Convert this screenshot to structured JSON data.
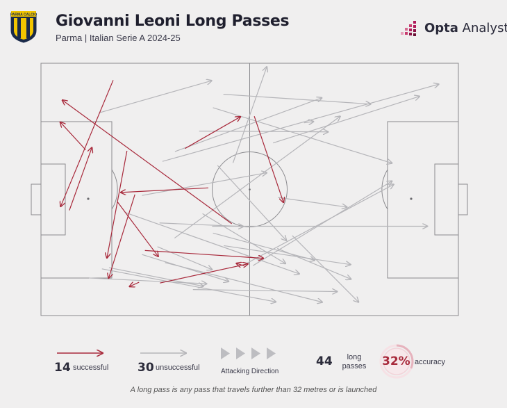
{
  "header": {
    "title": "Giovanni Leoni Long Passes",
    "subtitle": "Parma | Italian Serie A 2024-25",
    "crest_text": "PARMA CALCIO",
    "brand_prefix": "Opta",
    "brand_suffix": " Analyst"
  },
  "colors": {
    "successful": "#a8293b",
    "unsuccessful": "#b5b5b9",
    "pitch_line": "#8a8a8e",
    "brand_accent": "#b01b5a"
  },
  "legend": {
    "successful_count": "14",
    "successful_label": "successful",
    "unsuccessful_count": "30",
    "unsuccessful_label": "unsuccessful",
    "direction_label": "Attacking Direction",
    "total_count": "44",
    "total_label_line1": "long",
    "total_label_line2": "passes",
    "accuracy_value": "32%",
    "accuracy_label": "accuracy",
    "accuracy_fraction": 0.32
  },
  "footnote": "A long pass is any pass that travels further than 32 metres or is launched",
  "passes": {
    "successful": [
      [
        34.5,
        33.8,
        47.8,
        21.2
      ],
      [
        6.8,
        58.3,
        12.2,
        33.4
      ],
      [
        10.7,
        34.3,
        4.6,
        23.3
      ],
      [
        45.7,
        63.6,
        5.1,
        14.6
      ],
      [
        20.6,
        34.7,
        15.8,
        77.2
      ],
      [
        22.5,
        52.0,
        16.2,
        85.2
      ],
      [
        17.3,
        6.7,
        4.7,
        56.8
      ],
      [
        18.3,
        54.9,
        28.1,
        76.6
      ],
      [
        23.5,
        86.8,
        21.2,
        88.5
      ],
      [
        28.5,
        87.1,
        49.6,
        79.5
      ],
      [
        24.9,
        74.2,
        53.3,
        77.3
      ],
      [
        40.1,
        49.4,
        19.1,
        51.2
      ],
      [
        48.7,
        80.3,
        46.8,
        79.3
      ],
      [
        51.1,
        21.0,
        58.1,
        55.2
      ]
    ],
    "unsuccessful": [
      [
        14.0,
        19.6,
        40.9,
        6.9
      ],
      [
        46.0,
        39.5,
        54.1,
        1.4
      ],
      [
        42.3,
        40.5,
        58.8,
        70.3
      ],
      [
        37.9,
        26.9,
        68.8,
        27.2
      ],
      [
        32.1,
        35.0,
        67.3,
        13.7
      ],
      [
        29.1,
        38.9,
        95.3,
        8.3
      ],
      [
        43.7,
        12.3,
        79.0,
        16.2
      ],
      [
        63.0,
        23.6,
        65.3,
        23.1
      ],
      [
        55.6,
        31.6,
        90.7,
        13.1
      ],
      [
        24.2,
        52.4,
        54.1,
        43.4
      ],
      [
        32.0,
        69.3,
        71.7,
        21.0
      ],
      [
        41.2,
        17.6,
        84.1,
        39.6
      ],
      [
        43.8,
        72.3,
        74.2,
        79.8
      ],
      [
        48.5,
        80.0,
        84.5,
        48.0
      ],
      [
        50.8,
        80.2,
        84.1,
        46.7
      ],
      [
        60.2,
        68.3,
        76.1,
        94.7
      ],
      [
        56.6,
        73.4,
        74.3,
        85.6
      ],
      [
        41.2,
        67.3,
        65.6,
        78.1
      ],
      [
        41.0,
        64.6,
        92.6,
        64.6
      ],
      [
        28.4,
        63.3,
        48.5,
        64.7
      ],
      [
        56.8,
        53.2,
        73.3,
        57.0
      ],
      [
        38.7,
        59.6,
        58.6,
        79.4
      ],
      [
        20.1,
        59.1,
        61.9,
        83.5
      ],
      [
        24.2,
        75.8,
        45.0,
        86.5
      ],
      [
        16.3,
        81.0,
        38.9,
        88.4
      ],
      [
        14.6,
        81.5,
        56.3,
        94.6
      ],
      [
        11.5,
        85.1,
        39.7,
        87.4
      ],
      [
        29.7,
        79.0,
        67.4,
        94.7
      ],
      [
        27.9,
        72.7,
        41.0,
        81.8
      ],
      [
        36.4,
        89.7,
        71.0,
        90.5
      ]
    ]
  }
}
